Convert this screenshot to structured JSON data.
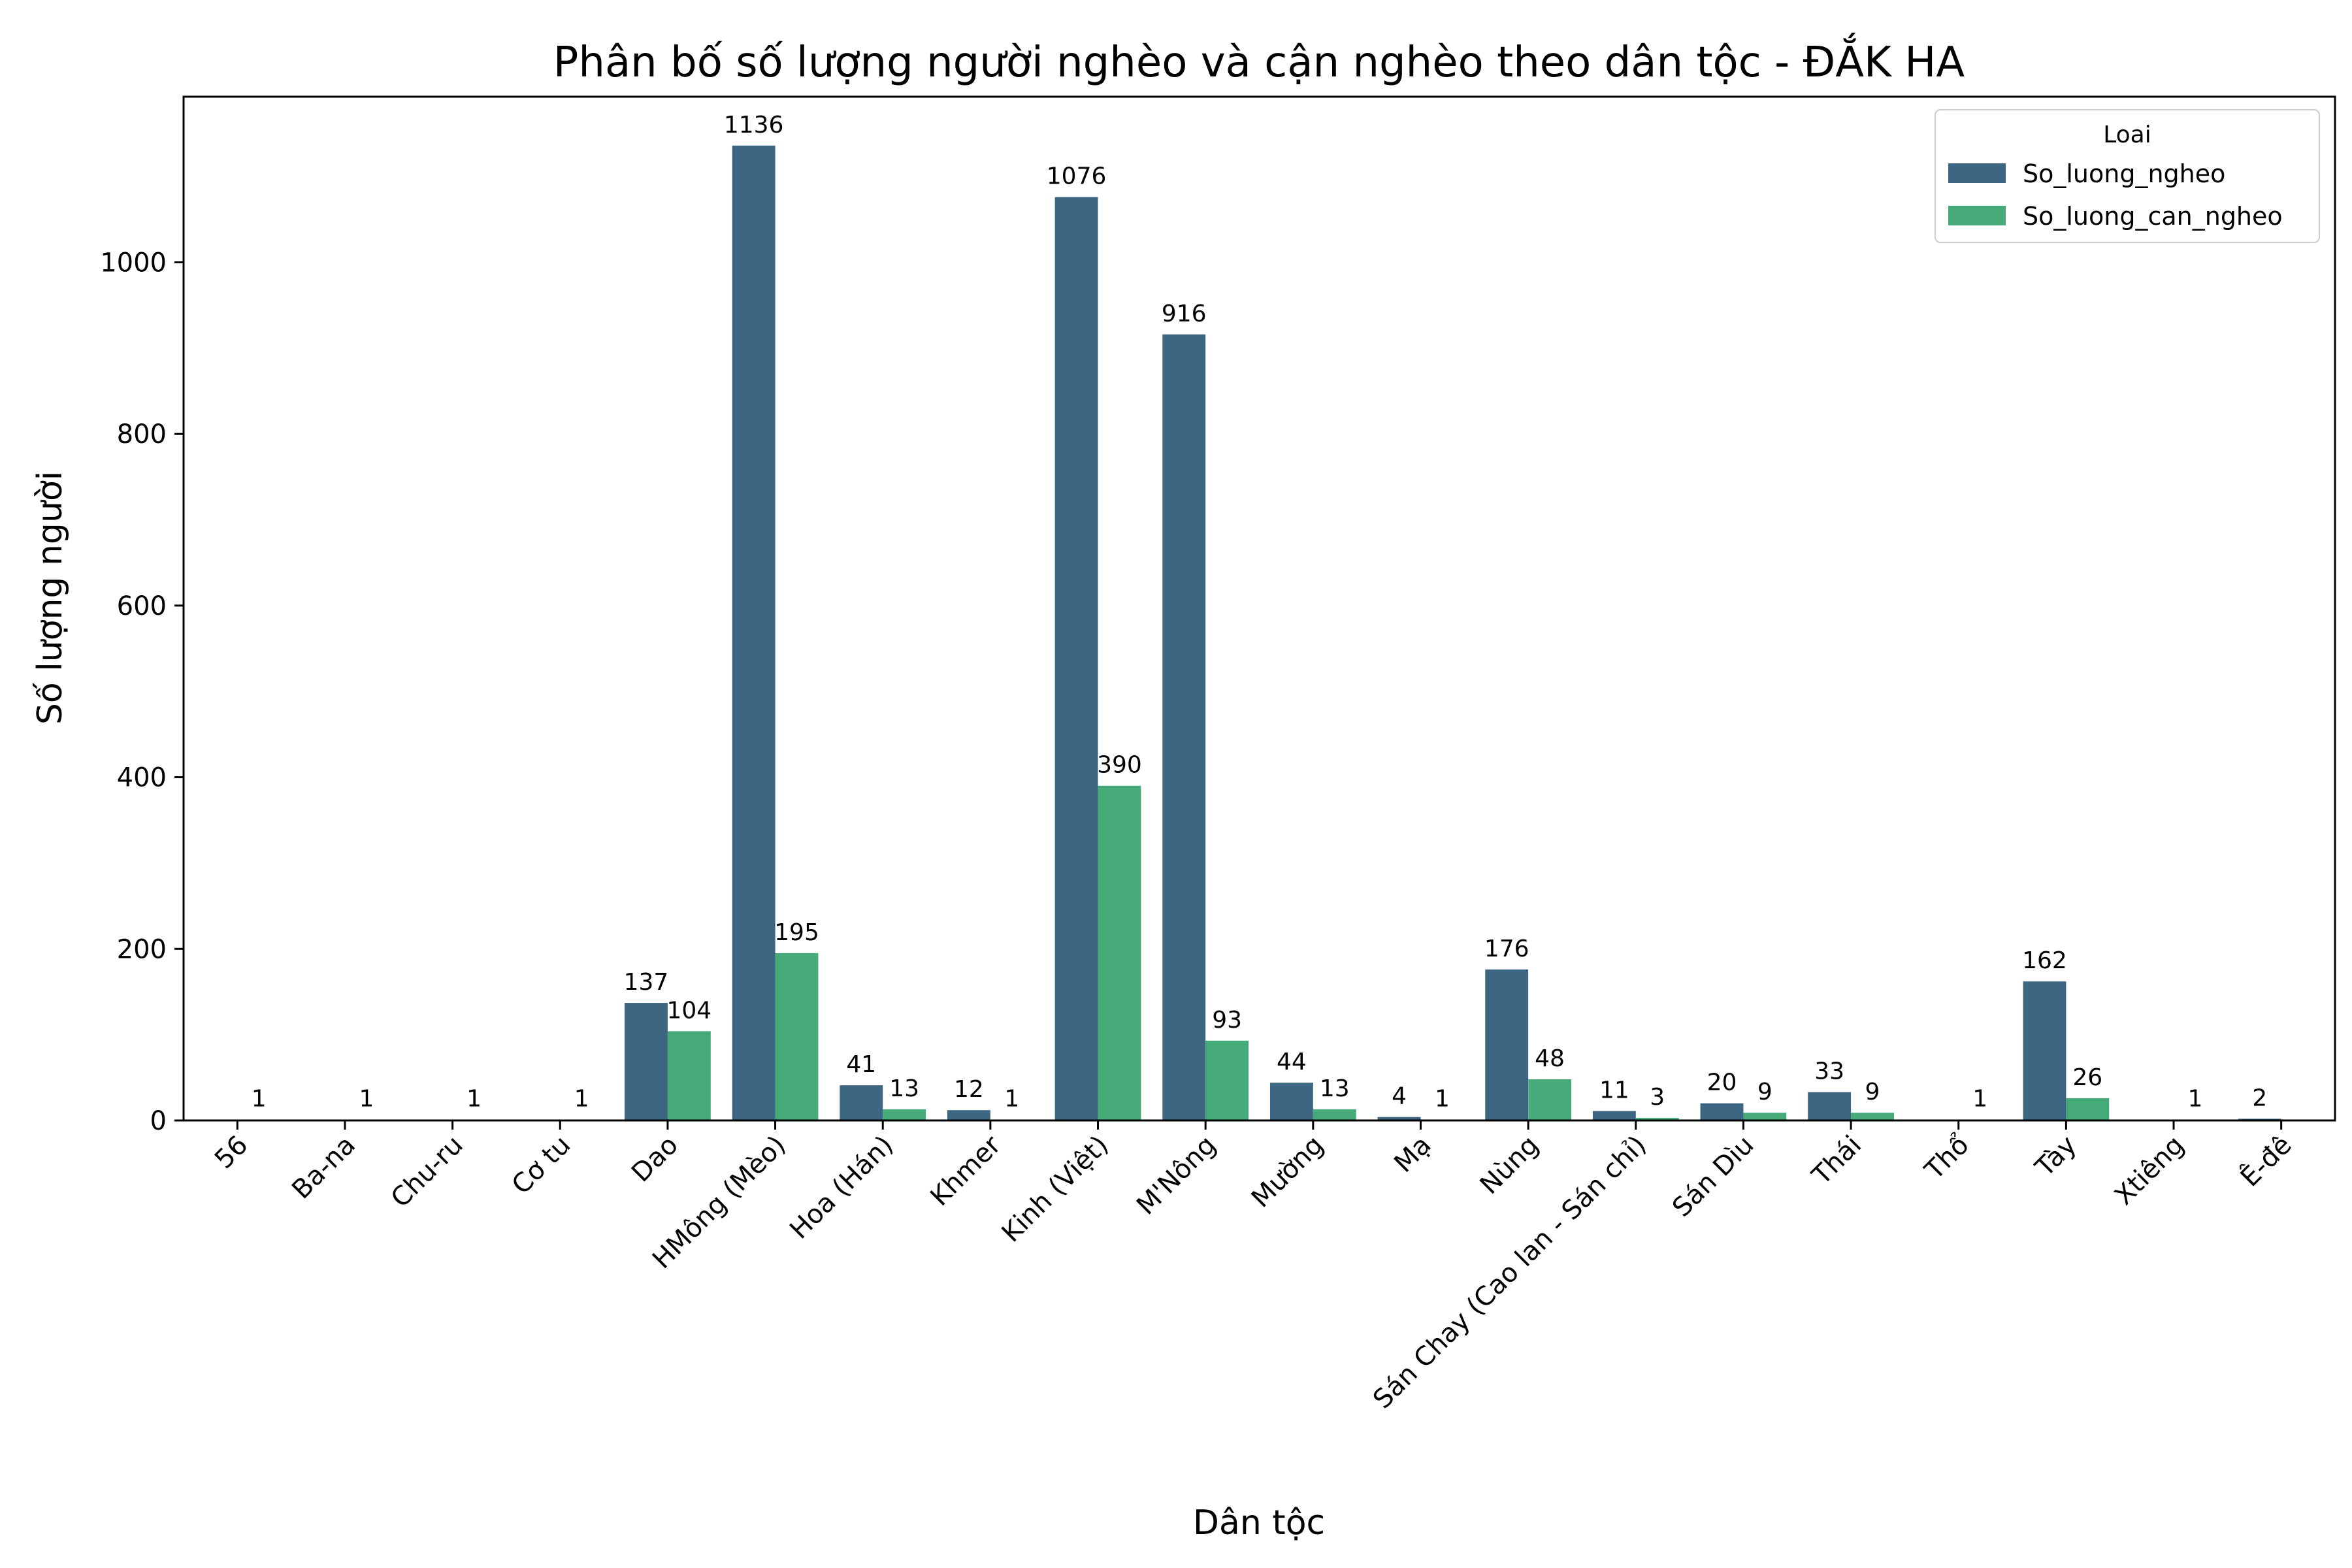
{
  "chart_data": {
    "type": "bar",
    "title": "Phân bố số lượng người nghèo và cận nghèo theo dân tộc - ĐẮK HA",
    "xlabel": "Dân tộc",
    "ylabel": "Số lượng người",
    "ylim": [
      0,
      1193
    ],
    "yticks": [
      0,
      200,
      400,
      600,
      800,
      1000
    ],
    "grid": false,
    "legend": {
      "title": "Loai",
      "position": "top-right"
    },
    "categories": [
      "56",
      "Ba-na",
      "Chu-ru",
      "Cơ tu",
      "Dao",
      "HMông (Mèo)",
      "Hoa (Hán)",
      "Khmer",
      "Kinh (Việt)",
      "M'Nông",
      "Mường",
      "Mạ",
      "Nùng",
      "Sán Chay (Cao lan - Sán chỉ)",
      "Sán Dìu",
      "Thái",
      "Thổ",
      "Tày",
      "Xtiêng",
      "Ê-đê"
    ],
    "series": [
      {
        "name": "So_luong_ngheo",
        "color": "#3c6682",
        "values": [
          null,
          null,
          null,
          null,
          137,
          1136,
          41,
          12,
          1076,
          916,
          44,
          4,
          176,
          11,
          20,
          33,
          null,
          162,
          null,
          2
        ]
      },
      {
        "name": "So_luong_can_ngheo",
        "color": "#46aa78",
        "values": [
          1,
          1,
          1,
          1,
          104,
          195,
          13,
          1,
          390,
          93,
          13,
          1,
          48,
          3,
          9,
          9,
          1,
          26,
          1,
          null
        ]
      }
    ]
  }
}
